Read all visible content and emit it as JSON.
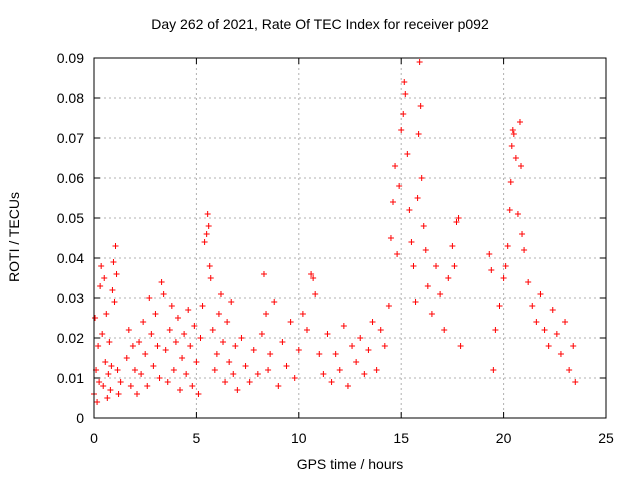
{
  "chart_data": {
    "type": "scatter",
    "title": "Day 262 of 2021, Rate Of TEC Index for receiver p092",
    "xlabel": "GPS time / hours",
    "ylabel": "ROTI / TECUs",
    "xlim": [
      0,
      25
    ],
    "ylim": [
      0,
      0.09
    ],
    "xticks": [
      "0",
      "5",
      "10",
      "15",
      "20",
      "25"
    ],
    "yticks": [
      "0",
      "0.01",
      "0.02",
      "0.03",
      "0.04",
      "0.05",
      "0.06",
      "0.07",
      "0.08",
      "0.09"
    ],
    "grid": true,
    "marker": "+",
    "color": "#ff0000",
    "series": [
      {
        "values": [
          [
            0.0,
            0.006
          ],
          [
            0.05,
            0.025
          ],
          [
            0.1,
            0.012
          ],
          [
            0.15,
            0.004
          ],
          [
            0.2,
            0.018
          ],
          [
            0.25,
            0.009
          ],
          [
            0.3,
            0.033
          ],
          [
            0.35,
            0.038
          ],
          [
            0.4,
            0.021
          ],
          [
            0.45,
            0.008
          ],
          [
            0.5,
            0.035
          ],
          [
            0.55,
            0.014
          ],
          [
            0.6,
            0.026
          ],
          [
            0.65,
            0.005
          ],
          [
            0.7,
            0.011
          ],
          [
            0.75,
            0.019
          ],
          [
            0.8,
            0.007
          ],
          [
            0.85,
            0.013
          ],
          [
            0.9,
            0.032
          ],
          [
            0.95,
            0.039
          ],
          [
            1.0,
            0.029
          ],
          [
            1.05,
            0.043
          ],
          [
            1.1,
            0.036
          ],
          [
            1.15,
            0.012
          ],
          [
            1.2,
            0.006
          ],
          [
            1.3,
            0.009
          ],
          [
            1.6,
            0.015
          ],
          [
            1.7,
            0.022
          ],
          [
            1.8,
            0.008
          ],
          [
            1.9,
            0.018
          ],
          [
            2.0,
            0.012
          ],
          [
            2.1,
            0.006
          ],
          [
            2.2,
            0.019
          ],
          [
            2.3,
            0.011
          ],
          [
            2.4,
            0.024
          ],
          [
            2.5,
            0.016
          ],
          [
            2.6,
            0.008
          ],
          [
            2.7,
            0.03
          ],
          [
            2.8,
            0.021
          ],
          [
            2.9,
            0.013
          ],
          [
            3.0,
            0.026
          ],
          [
            3.1,
            0.018
          ],
          [
            3.2,
            0.01
          ],
          [
            3.3,
            0.034
          ],
          [
            3.4,
            0.031
          ],
          [
            3.5,
            0.017
          ],
          [
            3.6,
            0.009
          ],
          [
            3.7,
            0.022
          ],
          [
            3.8,
            0.028
          ],
          [
            3.9,
            0.012
          ],
          [
            4.0,
            0.019
          ],
          [
            4.1,
            0.025
          ],
          [
            4.2,
            0.007
          ],
          [
            4.3,
            0.015
          ],
          [
            4.4,
            0.021
          ],
          [
            4.5,
            0.011
          ],
          [
            4.6,
            0.027
          ],
          [
            4.7,
            0.018
          ],
          [
            4.8,
            0.008
          ],
          [
            4.9,
            0.023
          ],
          [
            5.0,
            0.014
          ],
          [
            5.1,
            0.006
          ],
          [
            5.2,
            0.02
          ],
          [
            5.3,
            0.028
          ],
          [
            5.4,
            0.044
          ],
          [
            5.5,
            0.046
          ],
          [
            5.55,
            0.051
          ],
          [
            5.6,
            0.048
          ],
          [
            5.65,
            0.038
          ],
          [
            5.7,
            0.035
          ],
          [
            5.8,
            0.022
          ],
          [
            5.9,
            0.012
          ],
          [
            6.0,
            0.016
          ],
          [
            6.1,
            0.026
          ],
          [
            6.2,
            0.031
          ],
          [
            6.3,
            0.019
          ],
          [
            6.4,
            0.009
          ],
          [
            6.5,
            0.024
          ],
          [
            6.6,
            0.014
          ],
          [
            6.7,
            0.029
          ],
          [
            6.8,
            0.011
          ],
          [
            6.9,
            0.018
          ],
          [
            7.0,
            0.007
          ],
          [
            7.2,
            0.02
          ],
          [
            7.4,
            0.013
          ],
          [
            7.6,
            0.009
          ],
          [
            7.8,
            0.017
          ],
          [
            8.0,
            0.011
          ],
          [
            8.2,
            0.021
          ],
          [
            8.3,
            0.036
          ],
          [
            8.4,
            0.026
          ],
          [
            8.5,
            0.012
          ],
          [
            8.6,
            0.016
          ],
          [
            8.8,
            0.029
          ],
          [
            9.0,
            0.008
          ],
          [
            9.2,
            0.019
          ],
          [
            9.4,
            0.013
          ],
          [
            9.6,
            0.024
          ],
          [
            9.8,
            0.01
          ],
          [
            10.0,
            0.017
          ],
          [
            10.2,
            0.026
          ],
          [
            10.4,
            0.022
          ],
          [
            10.6,
            0.036
          ],
          [
            10.7,
            0.035
          ],
          [
            10.8,
            0.031
          ],
          [
            11.0,
            0.016
          ],
          [
            11.2,
            0.011
          ],
          [
            11.4,
            0.021
          ],
          [
            11.6,
            0.009
          ],
          [
            11.8,
            0.016
          ],
          [
            12.0,
            0.012
          ],
          [
            12.2,
            0.023
          ],
          [
            12.4,
            0.008
          ],
          [
            12.6,
            0.018
          ],
          [
            12.8,
            0.014
          ],
          [
            13.0,
            0.02
          ],
          [
            13.2,
            0.011
          ],
          [
            13.4,
            0.017
          ],
          [
            13.6,
            0.024
          ],
          [
            13.8,
            0.012
          ],
          [
            14.0,
            0.022
          ],
          [
            14.2,
            0.018
          ],
          [
            14.4,
            0.028
          ],
          [
            14.5,
            0.045
          ],
          [
            14.6,
            0.054
          ],
          [
            14.7,
            0.063
          ],
          [
            14.8,
            0.041
          ],
          [
            14.9,
            0.058
          ],
          [
            15.0,
            0.072
          ],
          [
            15.1,
            0.076
          ],
          [
            15.15,
            0.084
          ],
          [
            15.2,
            0.081
          ],
          [
            15.3,
            0.066
          ],
          [
            15.4,
            0.052
          ],
          [
            15.5,
            0.044
          ],
          [
            15.6,
            0.038
          ],
          [
            15.7,
            0.029
          ],
          [
            15.8,
            0.055
          ],
          [
            15.85,
            0.071
          ],
          [
            15.9,
            0.089
          ],
          [
            15.95,
            0.078
          ],
          [
            16.0,
            0.06
          ],
          [
            16.1,
            0.048
          ],
          [
            16.2,
            0.042
          ],
          [
            16.3,
            0.033
          ],
          [
            16.5,
            0.026
          ],
          [
            16.7,
            0.038
          ],
          [
            16.9,
            0.031
          ],
          [
            17.1,
            0.022
          ],
          [
            17.3,
            0.035
          ],
          [
            17.5,
            0.043
          ],
          [
            17.6,
            0.038
          ],
          [
            17.7,
            0.049
          ],
          [
            17.8,
            0.05
          ],
          [
            17.9,
            0.018
          ],
          [
            19.3,
            0.041
          ],
          [
            19.4,
            0.037
          ],
          [
            19.5,
            0.012
          ],
          [
            19.6,
            0.022
          ],
          [
            19.8,
            0.028
          ],
          [
            20.0,
            0.035
          ],
          [
            20.1,
            0.038
          ],
          [
            20.2,
            0.043
          ],
          [
            20.3,
            0.052
          ],
          [
            20.35,
            0.059
          ],
          [
            20.4,
            0.068
          ],
          [
            20.45,
            0.072
          ],
          [
            20.5,
            0.071
          ],
          [
            20.6,
            0.065
          ],
          [
            20.7,
            0.051
          ],
          [
            20.8,
            0.074
          ],
          [
            20.85,
            0.063
          ],
          [
            20.9,
            0.046
          ],
          [
            21.0,
            0.042
          ],
          [
            21.2,
            0.034
          ],
          [
            21.4,
            0.028
          ],
          [
            21.6,
            0.024
          ],
          [
            21.8,
            0.031
          ],
          [
            22.0,
            0.022
          ],
          [
            22.2,
            0.018
          ],
          [
            22.4,
            0.027
          ],
          [
            22.6,
            0.021
          ],
          [
            22.8,
            0.016
          ],
          [
            23.0,
            0.024
          ],
          [
            23.2,
            0.012
          ],
          [
            23.4,
            0.018
          ],
          [
            23.5,
            0.009
          ]
        ]
      }
    ]
  }
}
